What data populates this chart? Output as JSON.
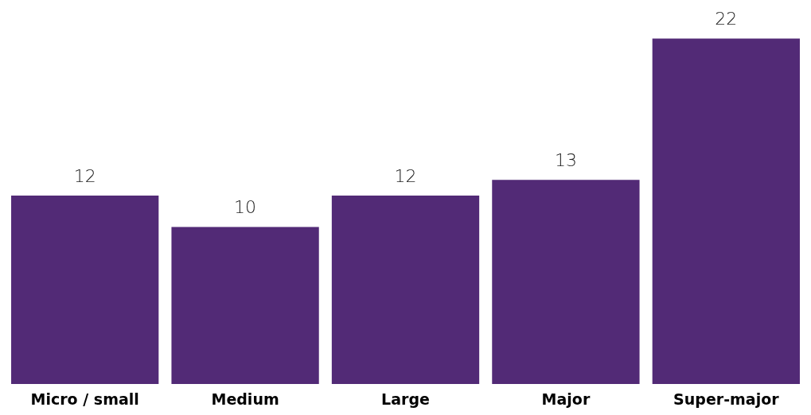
{
  "chart_data": {
    "type": "bar",
    "categories": [
      "Micro / small",
      "Medium",
      "Large",
      "Major",
      "Super-major"
    ],
    "values": [
      12,
      10,
      12,
      13,
      22
    ],
    "color": "#522a76",
    "data_labels": true,
    "grid": false
  }
}
